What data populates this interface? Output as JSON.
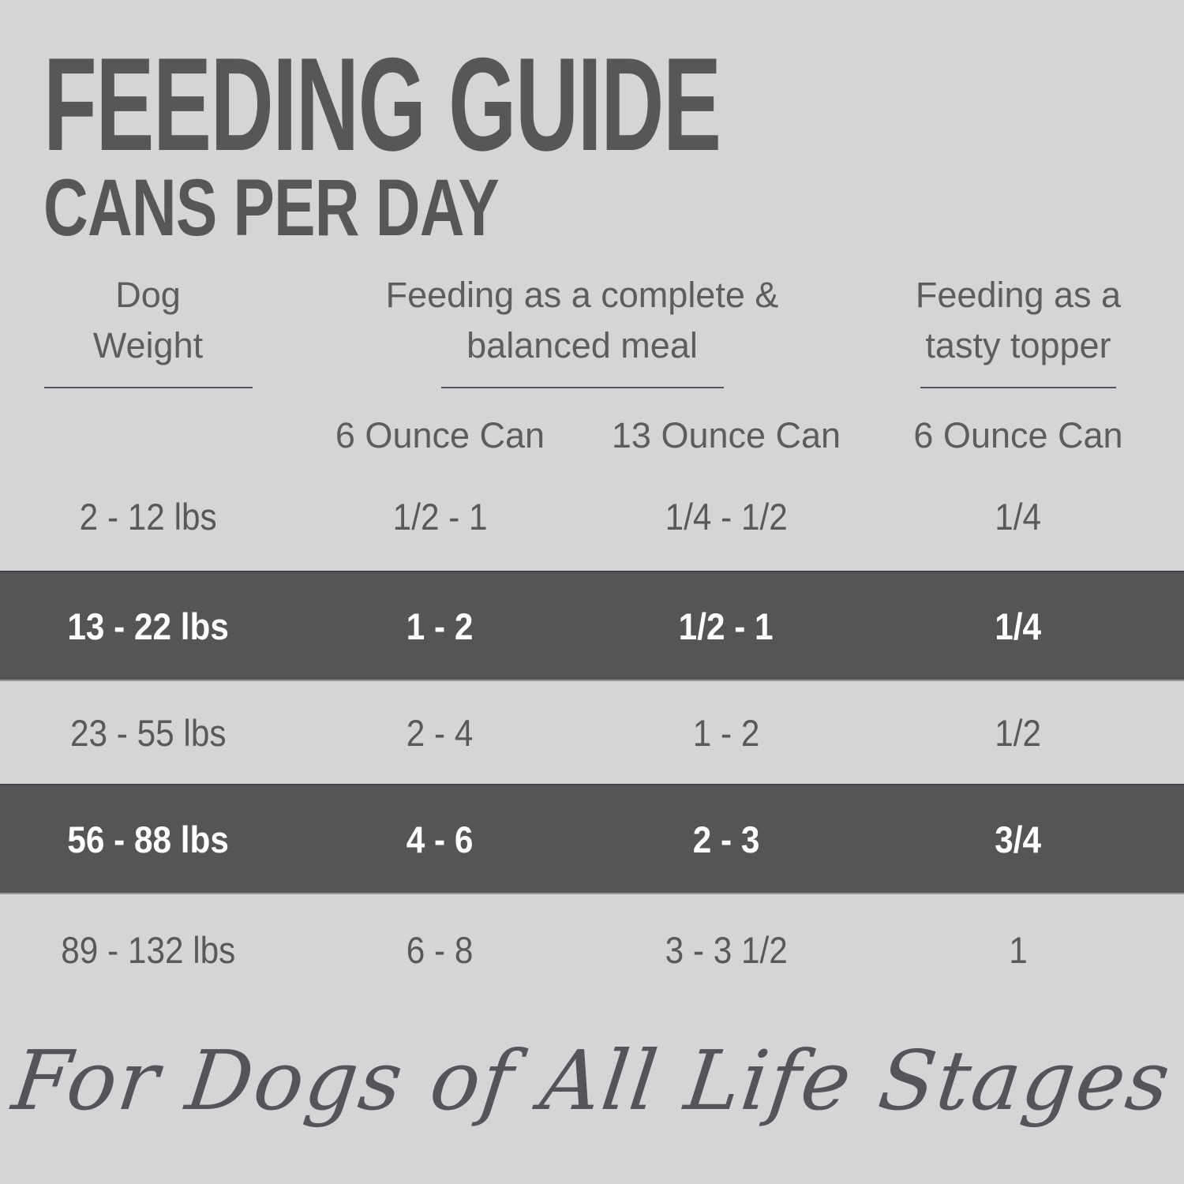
{
  "title": "FEEDING GUIDE",
  "subtitle": "CANS PER DAY",
  "header_lines": {
    "weight": [
      "Dog",
      "Weight"
    ],
    "complete": [
      "Feeding as a complete &",
      "balanced meal"
    ],
    "topper": [
      "Feeding as a",
      "tasty topper"
    ]
  },
  "chart_data": {
    "type": "table",
    "title": "FEEDING GUIDE",
    "subtitle": "CANS PER DAY",
    "column_groups": [
      {
        "label": "Dog Weight",
        "span": 1
      },
      {
        "label": "Feeding as a complete & balanced meal",
        "span": 2
      },
      {
        "label": "Feeding as a tasty topper",
        "span": 1
      }
    ],
    "columns": [
      "Dog Weight",
      "6 Ounce Can",
      "13 Ounce Can",
      "6 Ounce Can"
    ],
    "rows": [
      [
        "2 - 12 lbs",
        "1/2 - 1",
        "1/4 - 1/2",
        "1/4"
      ],
      [
        "13 - 22 lbs",
        "1 - 2",
        "1/2 - 1",
        "1/4"
      ],
      [
        "23 - 55 lbs",
        "2 - 4",
        "1 - 2",
        "1/2"
      ],
      [
        "56 - 88 lbs",
        "4 - 6",
        "2 - 3",
        "3/4"
      ],
      [
        "89 - 132 lbs",
        "6 - 8",
        "3 - 3 1/2",
        "1"
      ]
    ],
    "highlighted_rows": [
      1,
      3
    ],
    "footnote": "For Dogs of All Life Stages"
  },
  "colors": {
    "background": "#d4d5d7",
    "highlight_band": "#545557",
    "text": "#58595b",
    "highlight_text": "#ffffff"
  }
}
